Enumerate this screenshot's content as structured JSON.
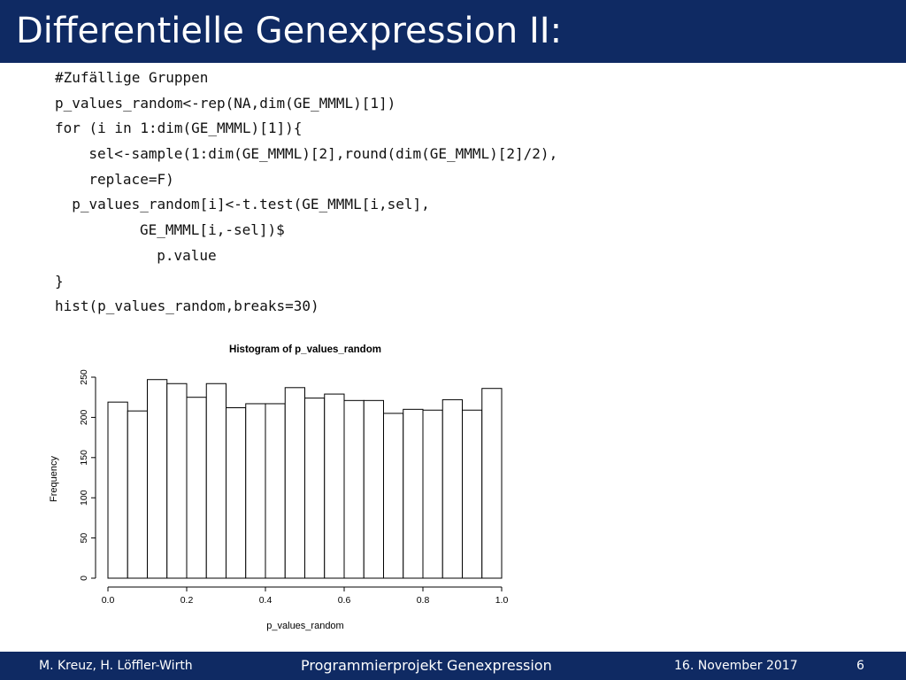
{
  "slide": {
    "title": "Differentielle Genexpression II:",
    "code_lines": [
      {
        "indent": 0,
        "text": "#Zufällige Gruppen"
      },
      {
        "indent": 0,
        "text": "p_values_random<-rep(NA,dim(GE_MMML)[1])"
      },
      {
        "indent": 0,
        "text": "for (i in 1:dim(GE_MMML)[1]){"
      },
      {
        "indent": 4,
        "text": "sel<-sample(1:dim(GE_MMML)[2],round(dim(GE_MMML)[2]/2),"
      },
      {
        "indent": 4,
        "text": "replace=F)"
      },
      {
        "indent": 2,
        "text": "p_values_random[i]<-t.test(GE_MMML[i,sel],"
      },
      {
        "indent": 10,
        "text": "GE_MMML[i,-sel])$"
      },
      {
        "indent": 12,
        "text": "p.value"
      },
      {
        "indent": 0,
        "text": "}"
      },
      {
        "indent": 0,
        "text": "hist(p_values_random,breaks=30)"
      }
    ]
  },
  "footer": {
    "authors": "M. Kreuz, H. Löffler-Wirth",
    "course": "Programmierprojekt Genexpression",
    "date": "16. November 2017",
    "page": "6"
  },
  "chart_data": {
    "type": "bar",
    "title": "Histogram of p_values_random",
    "xlabel": "p_values_random",
    "ylabel": "Frequency",
    "xlim": [
      0,
      1
    ],
    "ylim": [
      0,
      250
    ],
    "x_ticks": [
      "0.0",
      "0.2",
      "0.4",
      "0.6",
      "0.8",
      "1.0"
    ],
    "y_ticks": [
      "0",
      "50",
      "100",
      "150",
      "200",
      "250"
    ],
    "bin_width": 0.05,
    "bins_start": [
      0.0,
      0.05,
      0.1,
      0.15,
      0.2,
      0.25,
      0.3,
      0.35,
      0.4,
      0.45,
      0.5,
      0.55,
      0.6,
      0.65,
      0.7,
      0.75,
      0.8,
      0.85,
      0.9,
      0.95
    ],
    "values": [
      219,
      208,
      247,
      242,
      225,
      242,
      212,
      217,
      217,
      237,
      224,
      229,
      221,
      221,
      205,
      210,
      209,
      222,
      209,
      236
    ],
    "bar_fill": "#ffffff",
    "bar_stroke": "#000000"
  }
}
